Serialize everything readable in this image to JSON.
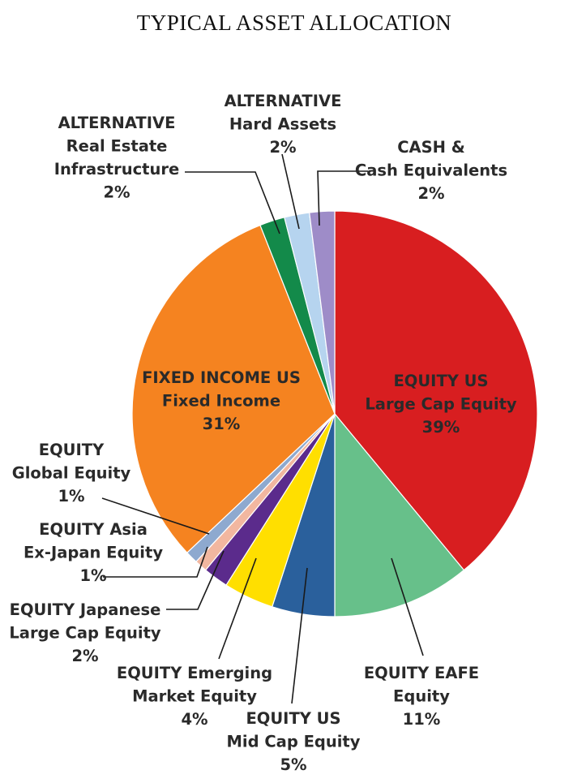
{
  "chart_data": {
    "type": "pie",
    "title": "TYPICAL ASSET ALLOCATION",
    "start_angle_deg": 90,
    "direction": "clockwise",
    "slices": [
      {
        "lines": [
          "EQUITY US",
          "Large Cap Equity",
          "39%"
        ],
        "value": 39,
        "color": "#d81e20",
        "label_inside": true
      },
      {
        "lines": [
          "EQUITY EAFE",
          "Equity",
          "11%"
        ],
        "value": 11,
        "color": "#67c08a",
        "label_inside": false
      },
      {
        "lines": [
          "EQUITY US",
          "Mid Cap Equity",
          "5%"
        ],
        "value": 5,
        "color": "#2a609c",
        "label_inside": false
      },
      {
        "lines": [
          "EQUITY Emerging",
          "Market Equity",
          "4%"
        ],
        "value": 4,
        "color": "#ffdf00",
        "label_inside": false
      },
      {
        "lines": [
          "EQUITY Japanese",
          "Large Cap Equity",
          "2%"
        ],
        "value": 2,
        "color": "#5b2b8c",
        "label_inside": false
      },
      {
        "lines": [
          "EQUITY Asia",
          "Ex-Japan Equity",
          "1%"
        ],
        "value": 1,
        "color": "#f2b7a0",
        "label_inside": false
      },
      {
        "lines": [
          "EQUITY",
          "Global Equity",
          "1%"
        ],
        "value": 1,
        "color": "#8ea9cf",
        "label_inside": false
      },
      {
        "lines": [
          "FIXED INCOME US",
          "Fixed Income",
          "31%"
        ],
        "value": 31,
        "color": "#f58320",
        "label_inside": true
      },
      {
        "lines": [
          "ALTERNATIVE",
          "Real Estate",
          "Infrastructure",
          "2%"
        ],
        "value": 2,
        "color": "#138a4a",
        "label_inside": false
      },
      {
        "lines": [
          "ALTERNATIVE",
          "Hard Assets",
          "2%"
        ],
        "value": 2,
        "color": "#b6d4ef",
        "label_inside": false
      },
      {
        "lines": [
          "CASH &",
          "Cash Equivalents",
          "2%"
        ],
        "value": 2,
        "color": "#9e8cc8",
        "label_inside": false
      }
    ]
  }
}
